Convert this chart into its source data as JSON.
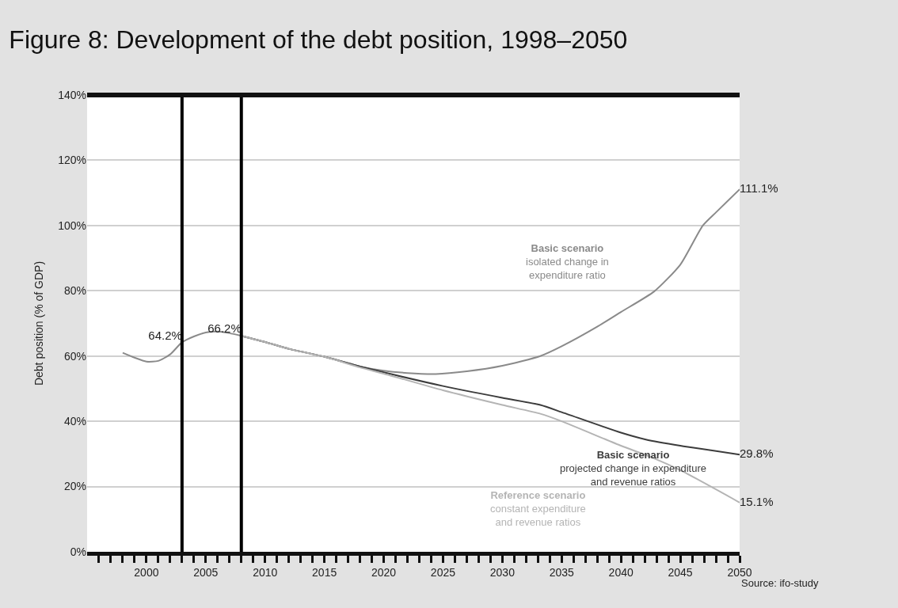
{
  "chart_data": {
    "type": "line",
    "title": "Figure 8: Development of the debt position, 1998–2050",
    "ylabel": "Debt position (% of GDP)",
    "xlim": [
      1995,
      2050
    ],
    "xticks": [
      {
        "value": 1996,
        "label": null
      },
      {
        "value": 1997,
        "label": null
      },
      {
        "value": 1998,
        "label": null
      },
      {
        "value": 1999,
        "label": null
      },
      {
        "value": 2000,
        "label": "2000"
      },
      {
        "value": 2001,
        "label": null
      },
      {
        "value": 2002,
        "label": null
      },
      {
        "value": 2003,
        "label": null
      },
      {
        "value": 2004,
        "label": null
      },
      {
        "value": 2005,
        "label": "2005"
      },
      {
        "value": 2006,
        "label": null
      },
      {
        "value": 2007,
        "label": null
      },
      {
        "value": 2008,
        "label": null
      },
      {
        "value": 2009,
        "label": null
      },
      {
        "value": 2010,
        "label": "2010"
      },
      {
        "value": 2011,
        "label": null
      },
      {
        "value": 2012,
        "label": null
      },
      {
        "value": 2013,
        "label": null
      },
      {
        "value": 2014,
        "label": null
      },
      {
        "value": 2015,
        "label": "2015"
      },
      {
        "value": 2016,
        "label": null
      },
      {
        "value": 2017,
        "label": null
      },
      {
        "value": 2018,
        "label": null
      },
      {
        "value": 2019,
        "label": null
      },
      {
        "value": 2020,
        "label": "2020"
      },
      {
        "value": 2021,
        "label": null
      },
      {
        "value": 2022,
        "label": null
      },
      {
        "value": 2023,
        "label": null
      },
      {
        "value": 2024,
        "label": null
      },
      {
        "value": 2025,
        "label": "2025"
      },
      {
        "value": 2026,
        "label": null
      },
      {
        "value": 2027,
        "label": null
      },
      {
        "value": 2028,
        "label": null
      },
      {
        "value": 2029,
        "label": null
      },
      {
        "value": 2030,
        "label": "2030"
      },
      {
        "value": 2031,
        "label": null
      },
      {
        "value": 2032,
        "label": null
      },
      {
        "value": 2033,
        "label": null
      },
      {
        "value": 2034,
        "label": null
      },
      {
        "value": 2035,
        "label": "2035"
      },
      {
        "value": 2036,
        "label": null
      },
      {
        "value": 2037,
        "label": null
      },
      {
        "value": 2038,
        "label": null
      },
      {
        "value": 2039,
        "label": null
      },
      {
        "value": 2040,
        "label": "2040"
      },
      {
        "value": 2041,
        "label": null
      },
      {
        "value": 2042,
        "label": null
      },
      {
        "value": 2043,
        "label": null
      },
      {
        "value": 2044,
        "label": null
      },
      {
        "value": 2045,
        "label": "2045"
      },
      {
        "value": 2046,
        "label": null
      },
      {
        "value": 2047,
        "label": null
      },
      {
        "value": 2048,
        "label": null
      },
      {
        "value": 2049,
        "label": null
      },
      {
        "value": 2050,
        "label": "2050"
      }
    ],
    "ylim": [
      0,
      140
    ],
    "yticks": [
      {
        "value": 0,
        "label": "0%"
      },
      {
        "value": 20,
        "label": "20%"
      },
      {
        "value": 40,
        "label": "40%"
      },
      {
        "value": 60,
        "label": "60%"
      },
      {
        "value": 80,
        "label": "80%"
      },
      {
        "value": 100,
        "label": "100%"
      },
      {
        "value": 120,
        "label": "120%"
      },
      {
        "value": 140,
        "label": "140%"
      }
    ],
    "grid": "y",
    "legend": false,
    "marker": "none",
    "line_style": "solid",
    "series": [
      {
        "color": "#8a8a8a",
        "x": [
          1998,
          1999,
          2000,
          2001,
          2002,
          2003,
          2004,
          2005,
          2006,
          2007,
          2008
        ],
        "values": [
          61,
          59.5,
          58.3,
          58.5,
          60.5,
          64.2,
          66,
          67.2,
          67.5,
          67,
          66.2
        ],
        "value_labels": [
          null,
          null,
          null,
          null,
          null,
          "64.2%",
          null,
          null,
          null,
          null,
          "66.2%"
        ]
      },
      {
        "name": "Basic scenario\nisolated change in\nexpenditure ratio",
        "color": "#8a8a8a",
        "x": [
          2008,
          2010,
          2012,
          2015,
          2018,
          2020,
          2022,
          2024.4,
          2027,
          2030,
          2033.2,
          2035,
          2038,
          2040,
          2042.8,
          2045,
          2046.9,
          2048,
          2050
        ],
        "values": [
          66.2,
          64.3,
          62.2,
          59.8,
          56.8,
          55.5,
          54.8,
          54.5,
          55.3,
          57,
          60,
          63,
          69,
          73.5,
          79.8,
          88,
          100,
          104,
          111.1
        ],
        "value_labels": [
          null,
          null,
          null,
          null,
          null,
          null,
          null,
          null,
          null,
          null,
          null,
          null,
          null,
          null,
          null,
          null,
          null,
          null,
          "111.1%"
        ]
      },
      {
        "name": "Basic scenario\nprojected change in expenditure\nand revenue ratios",
        "color": "#3c3c3c",
        "x": [
          2008,
          2010,
          2012,
          2015,
          2018,
          2020,
          2025,
          2030,
          2033.2,
          2035,
          2040,
          2042.1,
          2045,
          2050
        ],
        "values": [
          66.2,
          64.3,
          62.2,
          59.8,
          56.8,
          55,
          50.8,
          47.2,
          45,
          42.8,
          36.5,
          34.4,
          32.5,
          29.8
        ],
        "value_labels": [
          null,
          null,
          null,
          null,
          null,
          null,
          null,
          null,
          null,
          null,
          null,
          null,
          null,
          "29.8%"
        ]
      },
      {
        "name": "Reference scenario\nconstant expenditure\nand revenue ratios",
        "color": "#b4b4b4",
        "x": [
          2008,
          2010,
          2012,
          2015,
          2018,
          2020,
          2025,
          2030,
          2033.2,
          2035,
          2040,
          2042.4,
          2045,
          2050
        ],
        "values": [
          66.2,
          64.3,
          62.2,
          59.8,
          56.5,
          54.6,
          49.5,
          45,
          42.3,
          40,
          32.5,
          29.2,
          25,
          15.1
        ],
        "value_labels": [
          null,
          null,
          null,
          null,
          null,
          null,
          null,
          null,
          null,
          null,
          null,
          null,
          null,
          "15.1%"
        ]
      }
    ],
    "ref_lines": [
      {
        "axis": "x",
        "value": 2003,
        "label": null,
        "color": "#000000"
      },
      {
        "axis": "x",
        "value": 2008,
        "label": null,
        "color": "#000000"
      }
    ],
    "annotations": [
      "Source: ifo-study"
    ]
  }
}
